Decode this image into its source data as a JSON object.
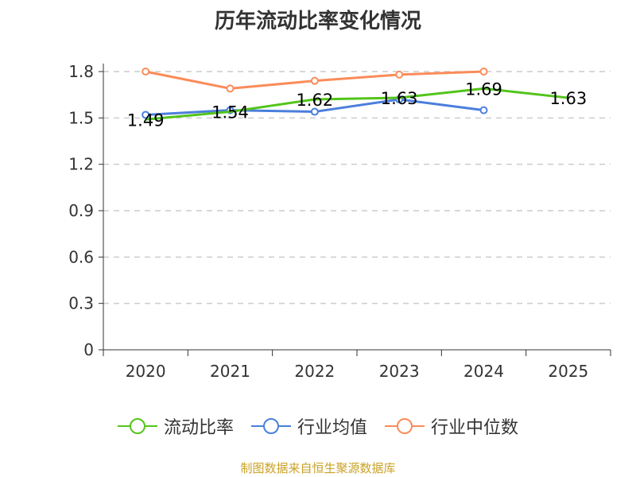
{
  "chart_data": {
    "type": "line",
    "title": "历年流动比率变化情况",
    "categories": [
      "2020",
      "2021",
      "2022",
      "2023",
      "2024",
      "2025"
    ],
    "ylim": [
      0,
      1.8
    ],
    "yticks": [
      "0",
      "0.3",
      "0.6",
      "0.9",
      "1.2",
      "1.5",
      "1.8"
    ],
    "series": [
      {
        "name": "流动比率",
        "color": "#52c41a",
        "values": [
          1.49,
          1.54,
          1.62,
          1.63,
          1.69,
          1.63
        ],
        "labels": [
          "1.49",
          "1.54",
          "1.62",
          "1.63",
          "1.69",
          "1.63"
        ]
      },
      {
        "name": "行业均值",
        "color": "#4a7fdc",
        "values": [
          1.52,
          1.55,
          1.54,
          1.62,
          1.55,
          null
        ]
      },
      {
        "name": "行业中位数",
        "color": "#fa8c5a",
        "values": [
          1.8,
          1.69,
          1.74,
          1.78,
          1.8,
          null
        ]
      }
    ],
    "source": "制图数据来自恒生聚源数据库"
  }
}
